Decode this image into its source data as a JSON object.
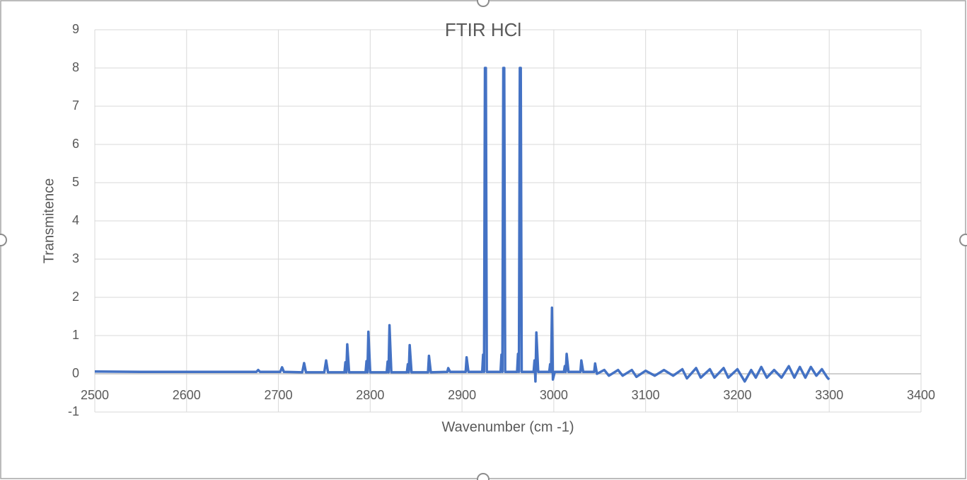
{
  "chart_data": {
    "type": "line",
    "title": "FTIR HCl",
    "x_label": "Wavenumber (cm -1)",
    "y_label": "Transmitence",
    "color": "#4472c4",
    "grid": true,
    "xlim": [
      2500,
      3400
    ],
    "xticks": [
      2500,
      2600,
      2700,
      2800,
      2900,
      3000,
      3100,
      3200,
      3300,
      3400
    ],
    "ylim": [
      -1,
      9
    ],
    "yticks": [
      -1,
      0,
      1,
      2,
      3,
      4,
      5,
      6,
      7,
      8,
      9
    ],
    "x": [
      2500,
      2550,
      2600,
      2650,
      2676,
      2678,
      2680,
      2702,
      2704,
      2706,
      2726,
      2728,
      2730,
      2750,
      2751,
      2752,
      2754,
      2772,
      2773,
      2774,
      2775,
      2777,
      2795,
      2796,
      2797,
      2798,
      2800,
      2818,
      2819,
      2820,
      2821,
      2823,
      2840,
      2841,
      2842,
      2843,
      2845,
      2863,
      2864,
      2866,
      2884,
      2885,
      2887,
      2904,
      2905,
      2907,
      2922,
      2923,
      2924,
      2925,
      2926,
      2927,
      2942,
      2943,
      2944,
      2945,
      2946,
      2947,
      2960,
      2961,
      2962,
      2963,
      2964,
      2965,
      2978,
      2979,
      2980,
      2981,
      2983,
      2995,
      2996,
      2997,
      2998,
      2999,
      3001,
      3011,
      3012,
      3013,
      3014,
      3016,
      3029,
      3030,
      3032,
      3044,
      3045,
      3047,
      3055,
      3060,
      3070,
      3075,
      3085,
      3090,
      3100,
      3110,
      3120,
      3130,
      3140,
      3145,
      3155,
      3160,
      3170,
      3175,
      3185,
      3190,
      3200,
      3208,
      3215,
      3220,
      3226,
      3232,
      3240,
      3248,
      3256,
      3262,
      3268,
      3274,
      3280,
      3286,
      3292,
      3298,
      3300
    ],
    "values": [
      0.06,
      0.05,
      0.05,
      0.05,
      0.05,
      0.1,
      0.05,
      0.05,
      0.17,
      0.05,
      0.04,
      0.28,
      0.04,
      0.04,
      0.2,
      0.35,
      0.04,
      0.04,
      0.3,
      0.04,
      0.77,
      0.04,
      0.04,
      0.33,
      0.04,
      1.1,
      0.04,
      0.04,
      0.32,
      0.04,
      1.27,
      0.04,
      0.04,
      0.25,
      0.04,
      0.75,
      0.04,
      0.04,
      0.47,
      0.04,
      0.05,
      0.15,
      0.05,
      0.05,
      0.43,
      0.05,
      0.05,
      0.5,
      0.05,
      8,
      8,
      0.05,
      0.05,
      0.5,
      0.05,
      8,
      8,
      0.05,
      0.05,
      0.52,
      0.05,
      8,
      8,
      0.05,
      0.05,
      0.35,
      -0.2,
      1.08,
      0.05,
      0.05,
      0.25,
      0.05,
      1.73,
      -0.15,
      0.05,
      0.05,
      0.2,
      0.05,
      0.52,
      0.05,
      0.05,
      0.35,
      0.05,
      0.05,
      0.27,
      0,
      0.1,
      -0.05,
      0.1,
      -0.05,
      0.1,
      -0.08,
      0.08,
      -0.05,
      0.1,
      -0.05,
      0.12,
      -0.12,
      0.15,
      -0.1,
      0.12,
      -0.1,
      0.15,
      -0.1,
      0.12,
      -0.2,
      0.1,
      -0.1,
      0.18,
      -0.1,
      0.1,
      -0.1,
      0.2,
      -0.1,
      0.18,
      -0.1,
      0.18,
      -0.05,
      0.12,
      -0.1,
      -0.15
    ]
  }
}
